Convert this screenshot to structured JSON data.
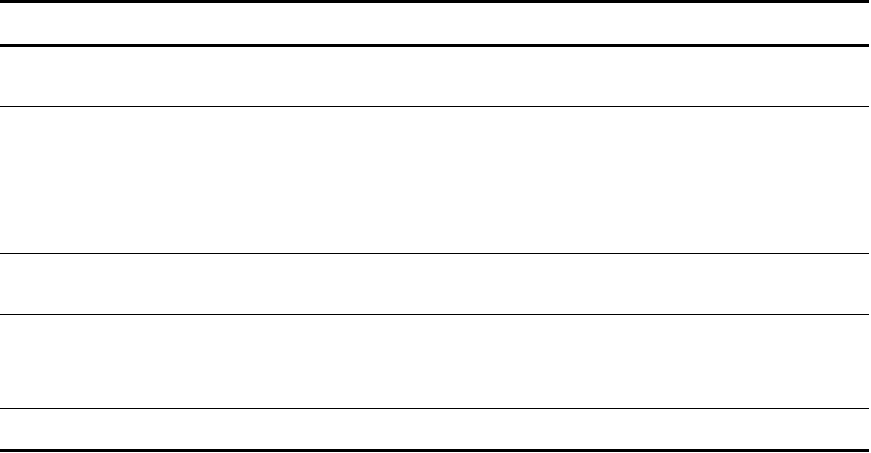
{
  "table": {
    "header": "",
    "rows": [
      "",
      "",
      "",
      "",
      ""
    ]
  }
}
